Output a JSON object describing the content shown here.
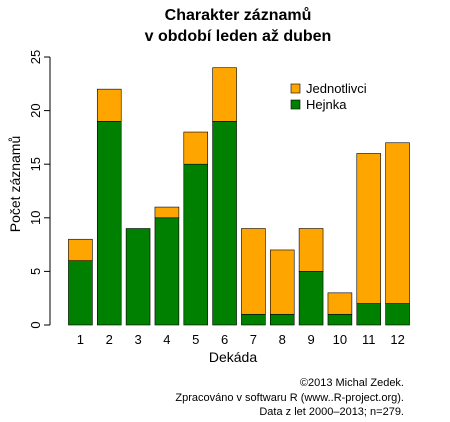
{
  "chart_data": {
    "type": "bar",
    "stacked": true,
    "title": [
      "Charakter záznamů",
      "v období leden až duben"
    ],
    "xlabel": "Dekáda",
    "ylabel": "Počet záznamů",
    "categories": [
      "1",
      "2",
      "3",
      "4",
      "5",
      "6",
      "7",
      "8",
      "9",
      "10",
      "11",
      "12"
    ],
    "ylim": [
      0,
      25
    ],
    "yticks": [
      "0",
      "5",
      "10",
      "15",
      "20",
      "25"
    ],
    "series": [
      {
        "name": "Hejnka",
        "color": "#008000",
        "values": [
          6,
          19,
          9,
          10,
          15,
          19,
          1,
          1,
          5,
          1,
          2,
          2
        ]
      },
      {
        "name": "Jednotlivci",
        "color": "#FFA500",
        "values": [
          2,
          3,
          0,
          1,
          3,
          5,
          8,
          6,
          4,
          2,
          14,
          15
        ]
      }
    ],
    "legend": {
      "placement": "top-right",
      "entries": [
        {
          "name": "Jednotlivci",
          "color": "#FFA500"
        },
        {
          "name": "Hejnka",
          "color": "#008000"
        }
      ]
    },
    "grid": false
  },
  "credits": [
    "©2013 Michal Zedek.",
    "Zpracováno v softwaru R (www..R-project.org).",
    "Data z let 2000–2013; n=279."
  ]
}
